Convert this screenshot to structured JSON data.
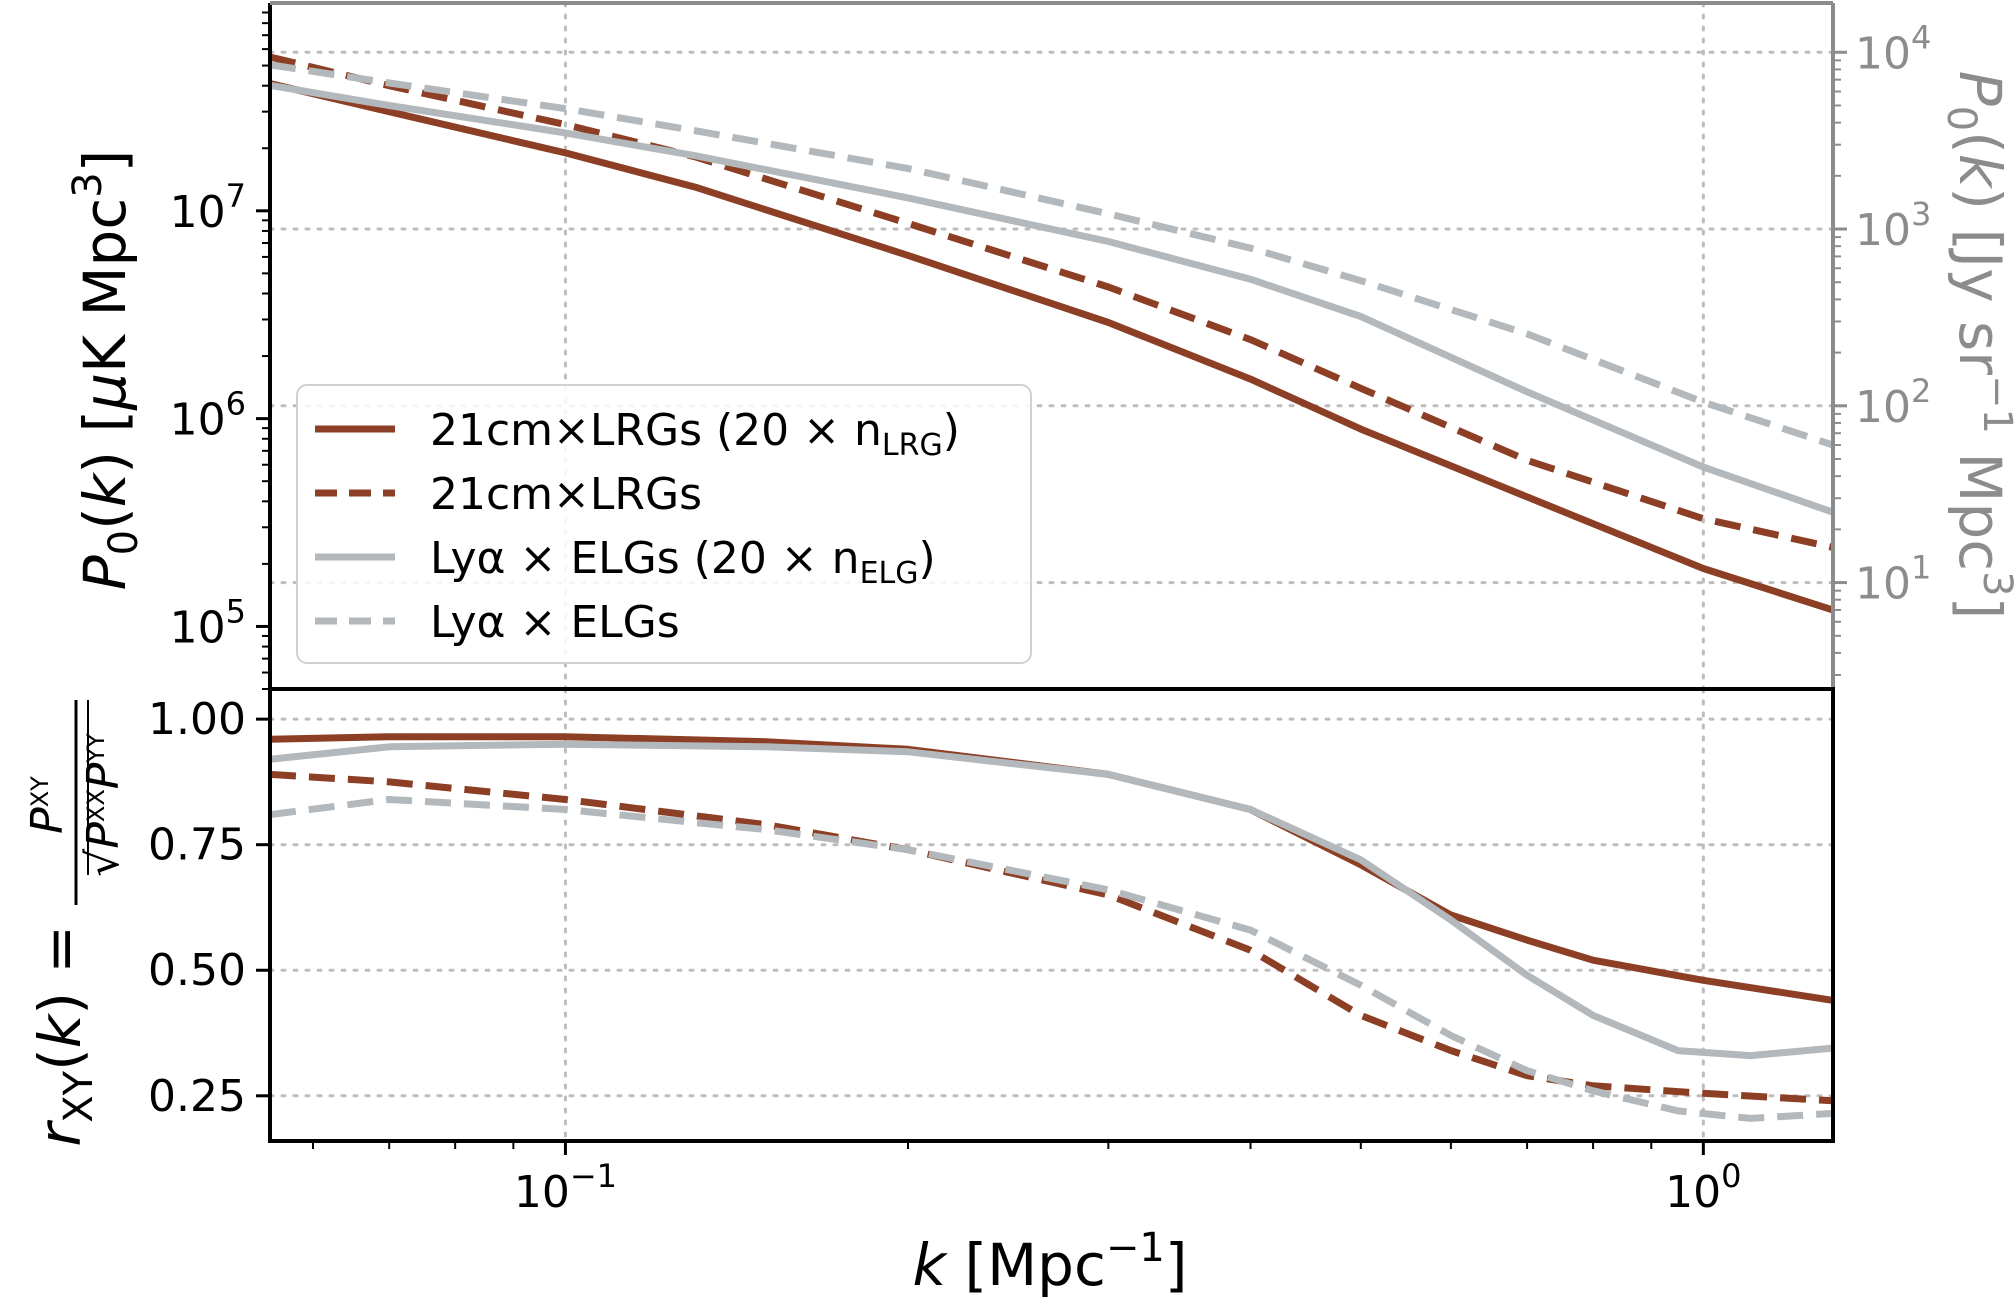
{
  "colors": {
    "rust": "#8c3f25",
    "gray": "#b2b8bc",
    "axis_right": "#8c8c8c"
  },
  "chart_data": [
    {
      "type": "line",
      "panel": "top",
      "xscale": "log",
      "yscale": "log",
      "xlim": [
        0.055,
        1.3
      ],
      "ylim_left": [
        50000.0,
        100000000.0
      ],
      "ylim_right": [
        2.5,
        19000.0
      ],
      "ylabel_left": "P0(k) [μK Mpc³]",
      "ylabel_right": "P0(k) [Jy sr⁻¹ Mpc³]",
      "yticks_left": [
        {
          "base": "10",
          "exp": "7",
          "value": 10000000.0
        },
        {
          "base": "10",
          "exp": "6",
          "value": 1000000.0
        },
        {
          "base": "10",
          "exp": "5",
          "value": 100000.0
        }
      ],
      "yticks_right": [
        {
          "base": "10",
          "exp": "4",
          "value": 10000.0
        },
        {
          "base": "10",
          "exp": "3",
          "value": 1000.0
        },
        {
          "base": "10",
          "exp": "2",
          "value": 100.0
        },
        {
          "base": "10",
          "exp": "1",
          "value": 10.0
        }
      ],
      "grid": true,
      "legend_position": "lower-left",
      "legend": [
        {
          "text": "21cm×LRGs (20 × n",
          "sub": "LRG",
          "tail": ")",
          "color": "#8c3f25",
          "dash": false
        },
        {
          "text": "21cm×LRGs",
          "sub": "",
          "tail": "",
          "color": "#8c3f25",
          "dash": true
        },
        {
          "text": "Lyα × ELGs (20 × n",
          "sub": "ELG",
          "tail": ")",
          "color": "#b2b8bc",
          "dash": false
        },
        {
          "text": "Lyα × ELGs",
          "sub": "",
          "tail": "",
          "color": "#b2b8bc",
          "dash": true
        }
      ],
      "series": [
        {
          "axis": "left",
          "color": "#8c3f25",
          "dash": false,
          "x": [
            0.055,
            0.07,
            0.1,
            0.13,
            0.2,
            0.3,
            0.4,
            0.5,
            0.7,
            1.0,
            1.3
          ],
          "y": [
            41000000.0,
            30000000.0,
            19000000.0,
            13000000.0,
            6100000.0,
            2900000.0,
            1550000.0,
            890000.0,
            420000.0,
            190000.0,
            120000.0
          ]
        },
        {
          "axis": "left",
          "color": "#8c3f25",
          "dash": true,
          "x": [
            0.055,
            0.07,
            0.1,
            0.13,
            0.2,
            0.3,
            0.4,
            0.5,
            0.7,
            1.0,
            1.3
          ],
          "y": [
            55000000.0,
            40000000.0,
            26000000.0,
            18200000.0,
            8700000.0,
            4300000.0,
            2400000.0,
            1400000.0,
            630000.0,
            330000.0,
            240000.0
          ]
        },
        {
          "axis": "right",
          "color": "#b2b8bc",
          "dash": false,
          "x": [
            0.055,
            0.07,
            0.1,
            0.13,
            0.2,
            0.3,
            0.4,
            0.5,
            0.7,
            1.0,
            1.3
          ],
          "y": [
            6500,
            5000,
            3500,
            2600,
            1500,
            850,
            520,
            320,
            120,
            45,
            25
          ]
        },
        {
          "axis": "right",
          "color": "#b2b8bc",
          "dash": true,
          "x": [
            0.055,
            0.07,
            0.1,
            0.13,
            0.2,
            0.3,
            0.4,
            0.5,
            0.7,
            1.0,
            1.3
          ],
          "y": [
            8500,
            6700,
            4800,
            3600,
            2200,
            1220,
            780,
            510,
            255,
            105,
            60
          ]
        }
      ]
    },
    {
      "type": "line",
      "panel": "bottom",
      "xscale": "log",
      "xlim": [
        0.055,
        1.3
      ],
      "ylim": [
        0.16,
        1.06
      ],
      "xlabel": "k [Mpc⁻¹]",
      "ylabel": "rXY(k) = P^XY / √(P^XX P^YY)",
      "yticks": [
        "1.00",
        "0.75",
        "0.50",
        "0.25"
      ],
      "xticks": [
        {
          "base": "10",
          "exp": "−1",
          "value": 0.1
        },
        {
          "base": "10",
          "exp": "0",
          "value": 1.0
        }
      ],
      "grid": true,
      "series": [
        {
          "color": "#8c3f25",
          "dash": false,
          "x": [
            0.055,
            0.07,
            0.1,
            0.15,
            0.2,
            0.3,
            0.4,
            0.5,
            0.6,
            0.7,
            0.8,
            1.0,
            1.3
          ],
          "y": [
            0.96,
            0.965,
            0.965,
            0.955,
            0.94,
            0.89,
            0.82,
            0.71,
            0.61,
            0.56,
            0.52,
            0.48,
            0.44
          ]
        },
        {
          "color": "#8c3f25",
          "dash": true,
          "x": [
            0.055,
            0.07,
            0.1,
            0.15,
            0.2,
            0.3,
            0.4,
            0.5,
            0.6,
            0.7,
            0.8,
            1.0,
            1.3
          ],
          "y": [
            0.89,
            0.875,
            0.84,
            0.79,
            0.74,
            0.65,
            0.54,
            0.41,
            0.34,
            0.29,
            0.27,
            0.255,
            0.24
          ]
        },
        {
          "color": "#b2b8bc",
          "dash": false,
          "x": [
            0.055,
            0.07,
            0.1,
            0.15,
            0.2,
            0.3,
            0.4,
            0.5,
            0.6,
            0.7,
            0.8,
            0.95,
            1.1,
            1.3
          ],
          "y": [
            0.92,
            0.945,
            0.95,
            0.945,
            0.935,
            0.89,
            0.82,
            0.72,
            0.6,
            0.49,
            0.41,
            0.34,
            0.33,
            0.345
          ]
        },
        {
          "color": "#b2b8bc",
          "dash": true,
          "x": [
            0.055,
            0.07,
            0.1,
            0.15,
            0.2,
            0.3,
            0.4,
            0.5,
            0.6,
            0.7,
            0.8,
            0.95,
            1.1,
            1.3
          ],
          "y": [
            0.81,
            0.84,
            0.82,
            0.78,
            0.74,
            0.66,
            0.58,
            0.47,
            0.37,
            0.3,
            0.26,
            0.22,
            0.205,
            0.215
          ]
        }
      ]
    }
  ]
}
